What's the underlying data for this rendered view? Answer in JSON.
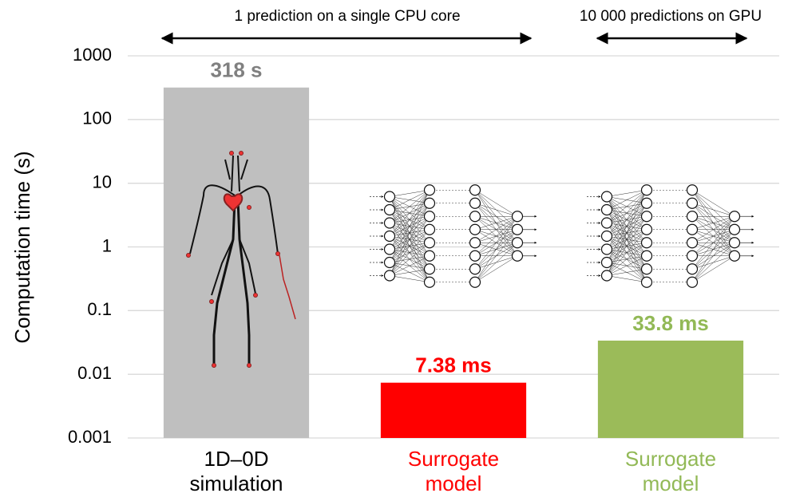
{
  "chart_data": {
    "type": "bar",
    "y_label": "Computation time (s)",
    "log_scale": true,
    "grid": true,
    "categories": [
      "1D–0D\nsimulation",
      "Surrogate\nmodel",
      "Surrogate\nmodel"
    ],
    "category_colors": [
      "#000000",
      "#ff0000",
      "#92b956"
    ],
    "values": [
      318,
      0.00738,
      0.0338
    ],
    "value_labels": [
      "318 s",
      "7.38 ms",
      "33.8 ms"
    ],
    "colors": [
      "#bfbfbf",
      "#ff0000",
      "#9bbb59"
    ],
    "value_label_colors": [
      "#808080",
      "#ff0000",
      "#92b956"
    ],
    "ylim": [
      0.001,
      1000
    ],
    "yticks": [
      0.001,
      0.01,
      0.1,
      1,
      10,
      100,
      1000
    ],
    "annotations": [
      "1 prediction on a single CPU core",
      "10 000 predictions on GPU"
    ]
  }
}
